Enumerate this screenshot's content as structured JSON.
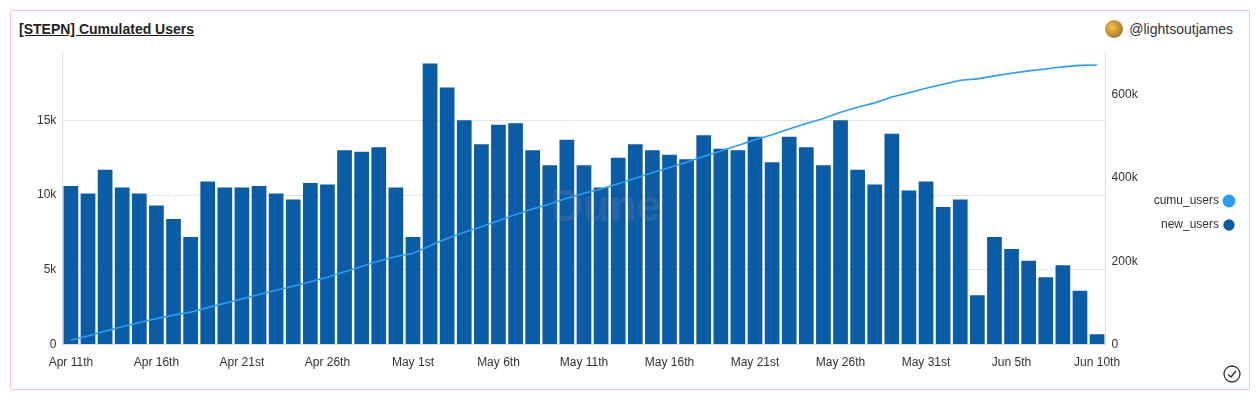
{
  "chart_data": {
    "type": "bar",
    "title": "[STEPN] Cumulated Users",
    "author": "@lightsoutjames",
    "watermark": "Dune",
    "categories": [
      "Apr 11th",
      null,
      null,
      null,
      null,
      "Apr 16th",
      null,
      null,
      null,
      null,
      "Apr 21st",
      null,
      null,
      null,
      null,
      "Apr 26th",
      null,
      null,
      null,
      null,
      "May 1st",
      null,
      null,
      null,
      null,
      "May 6th",
      null,
      null,
      null,
      null,
      "May 11th",
      null,
      null,
      null,
      null,
      "May 16th",
      null,
      null,
      null,
      null,
      "May 21st",
      null,
      null,
      null,
      null,
      "May 26th",
      null,
      null,
      null,
      null,
      "May 31st",
      null,
      null,
      null,
      null,
      "Jun 5th",
      null,
      null,
      null,
      null,
      "Jun 10th"
    ],
    "series": [
      {
        "name": "new_users",
        "type": "bar",
        "color": "#0b5ca6",
        "values": [
          10600,
          10100,
          11700,
          10500,
          10100,
          9300,
          8400,
          7200,
          10900,
          10500,
          10500,
          10600,
          10100,
          9700,
          10800,
          10700,
          13000,
          12900,
          13200,
          10500,
          7200,
          18800,
          17200,
          15000,
          13400,
          14700,
          14800,
          13000,
          12000,
          13700,
          12000,
          10500,
          12500,
          13400,
          13000,
          12700,
          12400,
          14000,
          13100,
          13000,
          13900,
          12200,
          13900,
          13200,
          12000,
          15000,
          11700,
          10700,
          14100,
          10300,
          10900,
          9200,
          9700,
          3300,
          7200,
          6400,
          5600,
          4500,
          5300,
          3600,
          700
        ]
      },
      {
        "name": "cumu_users",
        "type": "line",
        "axis": "y2",
        "color": "#2a9df4",
        "values": [
          10600,
          20700,
          32400,
          42900,
          53000,
          62300,
          70700,
          77900,
          88800,
          99300,
          109800,
          120400,
          130500,
          140200,
          151000,
          161700,
          174700,
          187600,
          200800,
          211300,
          218500,
          237300,
          254500,
          269500,
          282900,
          297600,
          312400,
          325400,
          337400,
          351100,
          363100,
          373600,
          386100,
          399500,
          412500,
          425200,
          437600,
          451600,
          464700,
          477700,
          491600,
          503800,
          517700,
          530900,
          542900,
          557900,
          569600,
          580300,
          594400,
          604700,
          615600,
          624800,
          634500,
          637800,
          645000,
          651400,
          657000,
          661500,
          666800,
          670400,
          671100
        ]
      }
    ],
    "ylim": [
      0,
      19500
    ],
    "yticks": [
      0,
      {
        "value": 5000,
        "label": "5k"
      },
      {
        "value": 10000,
        "label": "10k"
      },
      {
        "value": 15000,
        "label": "15k"
      }
    ],
    "y2lim": [
      0,
      700000
    ],
    "y2ticks": [
      0,
      {
        "value": 200000,
        "label": "200k"
      },
      {
        "value": 400000,
        "label": "400k"
      },
      {
        "value": 600000,
        "label": "600k"
      }
    ],
    "grid": true,
    "legend": "right"
  }
}
